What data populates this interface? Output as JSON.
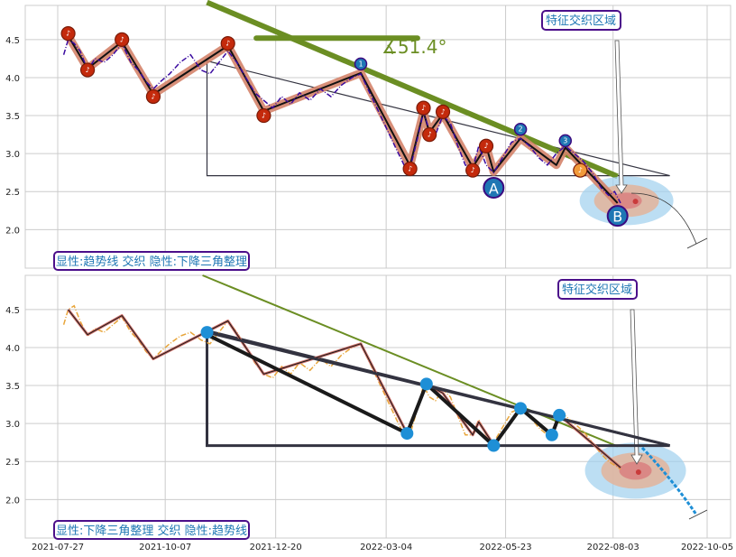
{
  "chart_data": [
    {
      "type": "line",
      "panel": "top",
      "title": "",
      "ylim": [
        1.6,
        4.95
      ],
      "yticks": [
        2.0,
        2.5,
        3.0,
        3.5,
        4.0,
        4.5
      ],
      "ytick_labels": [
        "2.0",
        "2.5",
        "3.0",
        "3.5",
        "4.0",
        "4.5"
      ],
      "grid": true,
      "series": [
        {
          "values": [
            {
              "x": "2021-07-31",
              "y": 4.3
            },
            {
              "x": "2021-08-03",
              "y": 4.5
            },
            {
              "x": "2021-08-07",
              "y": 4.45
            },
            {
              "x": "2021-08-11",
              "y": 4.35
            },
            {
              "x": "2021-08-16",
              "y": 4.1
            },
            {
              "x": "2021-08-21",
              "y": 4.25
            },
            {
              "x": "2021-08-27",
              "y": 4.2
            },
            {
              "x": "2021-09-02",
              "y": 4.3
            },
            {
              "x": "2021-09-08",
              "y": 4.45
            },
            {
              "x": "2021-09-14",
              "y": 4.2
            },
            {
              "x": "2021-09-19",
              "y": 4.1
            },
            {
              "x": "2021-09-24",
              "y": 3.95
            },
            {
              "x": "2021-09-29",
              "y": 3.85
            },
            {
              "x": "2021-10-04",
              "y": 3.95
            },
            {
              "x": "2021-10-10",
              "y": 4.05
            },
            {
              "x": "2021-10-17",
              "y": 4.2
            },
            {
              "x": "2021-10-24",
              "y": 4.3
            },
            {
              "x": "2021-10-31",
              "y": 4.1
            },
            {
              "x": "2021-11-06",
              "y": 4.05
            },
            {
              "x": "2021-11-12",
              "y": 4.2
            },
            {
              "x": "2021-11-18",
              "y": 4.35
            },
            {
              "x": "2021-11-24",
              "y": 4.2
            },
            {
              "x": "2021-11-30",
              "y": 4.0
            },
            {
              "x": "2021-12-06",
              "y": 3.8
            },
            {
              "x": "2021-12-12",
              "y": 3.7
            },
            {
              "x": "2021-12-18",
              "y": 3.6
            },
            {
              "x": "2021-12-24",
              "y": 3.75
            },
            {
              "x": "2021-12-30",
              "y": 3.65
            },
            {
              "x": "2022-01-05",
              "y": 3.8
            },
            {
              "x": "2022-01-12",
              "y": 3.7
            },
            {
              "x": "2022-01-19",
              "y": 3.85
            },
            {
              "x": "2022-01-26",
              "y": 3.75
            },
            {
              "x": "2022-02-02",
              "y": 3.9
            },
            {
              "x": "2022-02-09",
              "y": 4.0
            },
            {
              "x": "2022-02-15",
              "y": 4.05
            },
            {
              "x": "2022-02-21",
              "y": 3.8
            },
            {
              "x": "2022-02-27",
              "y": 3.55
            },
            {
              "x": "2022-03-05",
              "y": 3.3
            },
            {
              "x": "2022-03-11",
              "y": 3.05
            },
            {
              "x": "2022-03-16",
              "y": 2.85
            },
            {
              "x": "2022-03-20",
              "y": 2.8
            },
            {
              "x": "2022-03-25",
              "y": 3.2
            },
            {
              "x": "2022-03-29",
              "y": 3.55
            },
            {
              "x": "2022-04-02",
              "y": 3.3
            },
            {
              "x": "2022-04-06",
              "y": 3.25
            },
            {
              "x": "2022-04-11",
              "y": 3.5
            },
            {
              "x": "2022-04-16",
              "y": 3.4
            },
            {
              "x": "2022-04-21",
              "y": 3.1
            },
            {
              "x": "2022-04-26",
              "y": 2.85
            },
            {
              "x": "2022-05-01",
              "y": 2.8
            },
            {
              "x": "2022-05-05",
              "y": 3.1
            },
            {
              "x": "2022-05-10",
              "y": 2.85
            },
            {
              "x": "2022-05-15",
              "y": 2.75
            },
            {
              "x": "2022-05-21",
              "y": 2.95
            },
            {
              "x": "2022-05-27",
              "y": 3.15
            },
            {
              "x": "2022-06-02",
              "y": 3.2
            },
            {
              "x": "2022-06-08",
              "y": 3.1
            },
            {
              "x": "2022-06-14",
              "y": 2.95
            },
            {
              "x": "2022-06-20",
              "y": 2.85
            },
            {
              "x": "2022-06-26",
              "y": 3.0
            },
            {
              "x": "2022-07-02",
              "y": 3.1
            },
            {
              "x": "2022-07-08",
              "y": 3.0
            },
            {
              "x": "2022-07-14",
              "y": 2.9
            },
            {
              "x": "2022-07-20",
              "y": 2.75
            },
            {
              "x": "2022-07-26",
              "y": 2.55
            },
            {
              "x": "2022-07-31",
              "y": 2.45
            },
            {
              "x": "2022-08-04",
              "y": 2.5
            },
            {
              "x": "2022-08-08",
              "y": 2.35
            }
          ]
        }
      ],
      "markers": [
        {
          "x": "2021-08-03",
          "y": 4.58
        },
        {
          "x": "2021-08-16",
          "y": 4.1
        },
        {
          "x": "2021-09-08",
          "y": 4.5
        },
        {
          "x": "2021-09-29",
          "y": 3.75
        },
        {
          "x": "2021-11-18",
          "y": 4.45
        },
        {
          "x": "2021-12-12",
          "y": 3.5
        },
        {
          "x": "2022-03-20",
          "y": 2.8
        },
        {
          "x": "2022-03-29",
          "y": 3.6
        },
        {
          "x": "2022-04-02",
          "y": 3.25
        },
        {
          "x": "2022-04-11",
          "y": 3.55
        },
        {
          "x": "2022-05-01",
          "y": 2.78
        },
        {
          "x": "2022-05-10",
          "y": 3.1
        },
        {
          "x": "2022-07-12",
          "y": 2.78
        }
      ],
      "blue_markers": [
        {
          "x": "2022-02-15",
          "y": 4.18
        },
        {
          "x": "2022-06-02",
          "y": 3.32
        },
        {
          "x": "2022-07-02",
          "y": 3.17
        }
      ],
      "labeled_points": [
        {
          "label": "A",
          "x": "2022-05-15",
          "y": 2.55
        },
        {
          "label": "B",
          "x": "2022-08-06",
          "y": 2.18
        }
      ],
      "angle_label": "∡51.4°",
      "box_label": "特征交织区域",
      "legend": "显性:趋势线 交织 隐性:下降三角整理"
    },
    {
      "type": "line",
      "panel": "bottom",
      "title": "",
      "ylim": [
        1.6,
        4.95
      ],
      "yticks": [
        2.0,
        2.5,
        3.0,
        3.5,
        4.0,
        4.5
      ],
      "ytick_labels": [
        "2.0",
        "2.5",
        "3.0",
        "3.5",
        "4.0",
        "4.5"
      ],
      "grid": true,
      "series": [
        {
          "values": [
            {
              "x": "2021-07-31",
              "y": 4.3
            },
            {
              "x": "2021-08-03",
              "y": 4.5
            },
            {
              "x": "2021-08-07",
              "y": 4.55
            },
            {
              "x": "2021-08-11",
              "y": 4.35
            },
            {
              "x": "2021-08-16",
              "y": 4.15
            },
            {
              "x": "2021-08-21",
              "y": 4.25
            },
            {
              "x": "2021-08-27",
              "y": 4.2
            },
            {
              "x": "2021-09-02",
              "y": 4.3
            },
            {
              "x": "2021-09-08",
              "y": 4.4
            },
            {
              "x": "2021-09-14",
              "y": 4.2
            },
            {
              "x": "2021-09-19",
              "y": 4.1
            },
            {
              "x": "2021-09-24",
              "y": 3.95
            },
            {
              "x": "2021-09-29",
              "y": 3.85
            },
            {
              "x": "2021-10-04",
              "y": 3.95
            },
            {
              "x": "2021-10-10",
              "y": 4.05
            },
            {
              "x": "2021-10-17",
              "y": 4.15
            },
            {
              "x": "2021-10-24",
              "y": 4.2
            },
            {
              "x": "2021-10-31",
              "y": 4.1
            },
            {
              "x": "2021-11-06",
              "y": 4.05
            },
            {
              "x": "2021-11-12",
              "y": 4.2
            },
            {
              "x": "2021-11-18",
              "y": 4.35
            },
            {
              "x": "2021-11-24",
              "y": 4.2
            },
            {
              "x": "2021-11-30",
              "y": 4.0
            },
            {
              "x": "2021-12-06",
              "y": 3.8
            },
            {
              "x": "2021-12-12",
              "y": 3.65
            },
            {
              "x": "2021-12-18",
              "y": 3.6
            },
            {
              "x": "2021-12-24",
              "y": 3.75
            },
            {
              "x": "2021-12-30",
              "y": 3.65
            },
            {
              "x": "2022-01-05",
              "y": 3.8
            },
            {
              "x": "2022-01-12",
              "y": 3.7
            },
            {
              "x": "2022-01-19",
              "y": 3.85
            },
            {
              "x": "2022-01-26",
              "y": 3.75
            },
            {
              "x": "2022-02-02",
              "y": 3.9
            },
            {
              "x": "2022-02-09",
              "y": 4.0
            },
            {
              "x": "2022-02-15",
              "y": 4.05
            },
            {
              "x": "2022-02-21",
              "y": 3.8
            },
            {
              "x": "2022-02-27",
              "y": 3.55
            },
            {
              "x": "2022-03-05",
              "y": 3.3
            },
            {
              "x": "2022-03-11",
              "y": 3.05
            },
            {
              "x": "2022-03-16",
              "y": 2.85
            },
            {
              "x": "2022-03-20",
              "y": 2.85
            },
            {
              "x": "2022-03-25",
              "y": 3.2
            },
            {
              "x": "2022-03-29",
              "y": 3.5
            },
            {
              "x": "2022-04-02",
              "y": 3.35
            },
            {
              "x": "2022-04-06",
              "y": 3.3
            },
            {
              "x": "2022-04-11",
              "y": 3.45
            },
            {
              "x": "2022-04-16",
              "y": 3.35
            },
            {
              "x": "2022-04-21",
              "y": 3.1
            },
            {
              "x": "2022-04-26",
              "y": 2.85
            },
            {
              "x": "2022-05-01",
              "y": 2.85
            },
            {
              "x": "2022-05-05",
              "y": 3.05
            },
            {
              "x": "2022-05-10",
              "y": 2.85
            },
            {
              "x": "2022-05-15",
              "y": 2.75
            },
            {
              "x": "2022-05-21",
              "y": 2.95
            },
            {
              "x": "2022-05-27",
              "y": 3.15
            },
            {
              "x": "2022-06-02",
              "y": 3.2
            },
            {
              "x": "2022-06-08",
              "y": 3.1
            },
            {
              "x": "2022-06-14",
              "y": 2.95
            },
            {
              "x": "2022-06-20",
              "y": 2.85
            },
            {
              "x": "2022-06-26",
              "y": 3.0
            },
            {
              "x": "2022-07-02",
              "y": 3.1
            },
            {
              "x": "2022-07-08",
              "y": 3.0
            },
            {
              "x": "2022-07-14",
              "y": 2.9
            },
            {
              "x": "2022-07-20",
              "y": 2.75
            },
            {
              "x": "2022-07-26",
              "y": 2.6
            },
            {
              "x": "2022-07-31",
              "y": 2.5
            },
            {
              "x": "2022-08-04",
              "y": 2.45
            },
            {
              "x": "2022-08-08",
              "y": 2.4
            }
          ]
        }
      ],
      "pivots": [
        {
          "x": "2021-11-04",
          "y": 4.2
        },
        {
          "x": "2022-03-18",
          "y": 2.87
        },
        {
          "x": "2022-03-31",
          "y": 3.52
        },
        {
          "x": "2022-05-15",
          "y": 2.71
        },
        {
          "x": "2022-06-02",
          "y": 3.2
        },
        {
          "x": "2022-06-23",
          "y": 2.85
        },
        {
          "x": "2022-06-28",
          "y": 3.11
        }
      ],
      "box_label": "特征交织区域",
      "legend": "显性:下降三角整理 交织 隐性:趋势线"
    }
  ],
  "x_axis": {
    "tick_labels": [
      "2021-07-27",
      "2021-10-07",
      "2021-12-20",
      "2022-03-04",
      "2022-05-23",
      "2022-08-03",
      "2022-10-05"
    ]
  },
  "colors": {
    "price_top": "#3a0aa0",
    "price_bottom": "#e8a53a",
    "wave_band": "#d4836a",
    "trend_green": "#6b8e23",
    "triangle": "#333340",
    "marker_red": "#c42a0c",
    "marker_blue": "#1f77b4",
    "marker_orange": "#f19a3a",
    "pivot_blue": "#1e8fd6",
    "box_border": "#4b0f8a",
    "box_text": "#1f77b4"
  }
}
